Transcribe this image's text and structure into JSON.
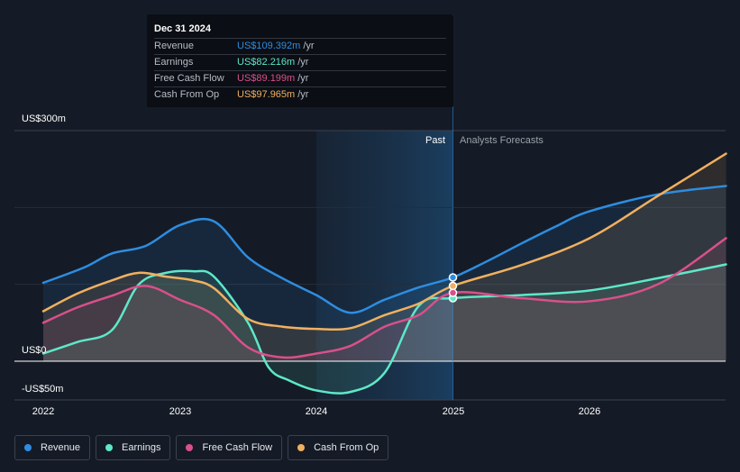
{
  "tooltip": {
    "date": "Dec 31 2024",
    "rows": [
      {
        "label": "Revenue",
        "value": "US$109.392m",
        "unit": "/yr",
        "color": "#2e8de0"
      },
      {
        "label": "Earnings",
        "value": "US$82.216m",
        "unit": "/yr",
        "color": "#5ee8c8"
      },
      {
        "label": "Free Cash Flow",
        "value": "US$89.199m",
        "unit": "/yr",
        "color": "#d9508a"
      },
      {
        "label": "Cash From Op",
        "value": "US$97.965m",
        "unit": "/yr",
        "color": "#f0b060"
      }
    ]
  },
  "sections": {
    "past": "Past",
    "forecast": "Analysts Forecasts"
  },
  "legend": [
    {
      "label": "Revenue",
      "color": "#2e8de0"
    },
    {
      "label": "Earnings",
      "color": "#5ee8c8"
    },
    {
      "label": "Free Cash Flow",
      "color": "#d9508a"
    },
    {
      "label": "Cash From Op",
      "color": "#f0b060"
    }
  ],
  "chart_data": {
    "type": "line",
    "y_tick_labels": [
      "US$300m",
      "US$0",
      "-US$50m"
    ],
    "ylim": [
      -50,
      300
    ],
    "xlim": [
      2022,
      2027
    ],
    "x_tick_labels": [
      "2022",
      "2023",
      "2024",
      "2025",
      "2026"
    ],
    "highlight_range": [
      2024,
      2025
    ],
    "divider_x": 2025,
    "series": [
      {
        "name": "Revenue",
        "color": "#2e8de0",
        "x": [
          2022.0,
          2022.3,
          2022.5,
          2022.75,
          2023.0,
          2023.25,
          2023.5,
          2023.75,
          2024.0,
          2024.25,
          2024.5,
          2024.75,
          2025.0,
          2025.25,
          2025.5,
          2025.75,
          2026.0,
          2026.5,
          2027.0
        ],
        "y": [
          102,
          122,
          140,
          150,
          177,
          182,
          135,
          108,
          86,
          63,
          80,
          96,
          109,
          130,
          153,
          175,
          195,
          217,
          228
        ]
      },
      {
        "name": "Earnings",
        "color": "#5ee8c8",
        "x": [
          2022.0,
          2022.25,
          2022.5,
          2022.7,
          2022.9,
          2023.1,
          2023.25,
          2023.5,
          2023.65,
          2023.8,
          2024.0,
          2024.25,
          2024.5,
          2024.75,
          2025.0,
          2025.5,
          2026.0,
          2026.5,
          2027.0
        ],
        "y": [
          10,
          25,
          40,
          100,
          115,
          117,
          110,
          50,
          -8,
          -25,
          -38,
          -40,
          -15,
          72,
          82,
          86,
          92,
          108,
          126
        ]
      },
      {
        "name": "Free Cash Flow",
        "color": "#d9508a",
        "x": [
          2022.0,
          2022.25,
          2022.5,
          2022.75,
          2023.0,
          2023.25,
          2023.5,
          2023.75,
          2024.0,
          2024.25,
          2024.5,
          2024.75,
          2025.0,
          2025.5,
          2026.0,
          2026.5,
          2027.0
        ],
        "y": [
          50,
          70,
          85,
          98,
          80,
          60,
          18,
          5,
          10,
          20,
          45,
          60,
          89,
          82,
          78,
          100,
          160
        ]
      },
      {
        "name": "Cash From Op",
        "color": "#f0b060",
        "x": [
          2022.0,
          2022.25,
          2022.5,
          2022.7,
          2022.9,
          2023.1,
          2023.25,
          2023.5,
          2023.75,
          2024.0,
          2024.25,
          2024.5,
          2024.75,
          2025.0,
          2025.5,
          2026.0,
          2026.5,
          2027.0
        ],
        "y": [
          65,
          88,
          105,
          115,
          110,
          105,
          95,
          55,
          45,
          42,
          43,
          60,
          75,
          98,
          125,
          160,
          215,
          270
        ]
      }
    ]
  }
}
